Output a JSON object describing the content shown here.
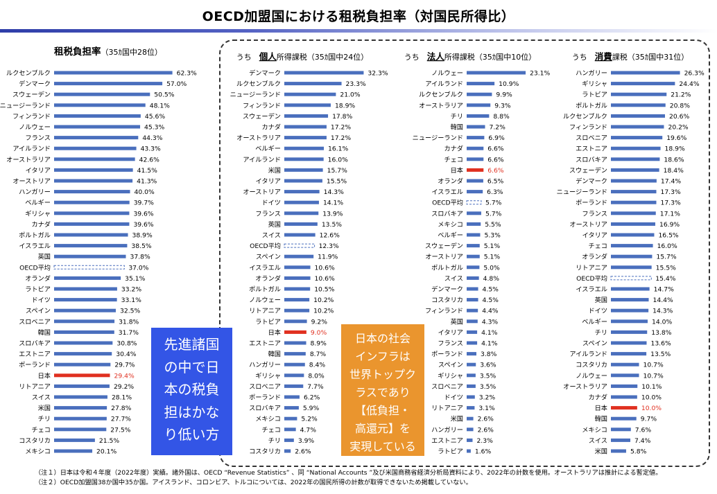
{
  "page": {
    "title": "OECD加盟国における租税負担率（対国民所得比）",
    "callout_left": "先進諸国\nの中で日\n本の税負\n担はかな\nり低い方",
    "callout_right": "日本の社会\nインフラは\n世界トップク\nラスであり\n【低負担・\n高還元】を\n実現している",
    "note1": "（注１）日本は令和４年度（2022年度）実績。諸外国は、OECD “Revenue Statistics” 、同 “National Accounts ”及び米国商務省経済分析局資料により、2022年の計数を使用。オーストラリアは推計による暫定値。",
    "note2": "（注２）OECD加盟国38か国中35か国。アイスランド、コロンビア、トルコについては、2022年の国民所得の計数が取得できないため掲載していない。"
  },
  "colors": {
    "bar": "#4a6fbd",
    "japan": "#e03020",
    "japan_label": "#e03020",
    "oecd_dash": "#4a6fbd"
  },
  "chart_data": [
    {
      "type": "bar",
      "orientation": "horizontal",
      "title_main": "租税負担率",
      "title_suffix": "（35ｶ国中28位）",
      "xlim": [
        0,
        65
      ],
      "highlight": "日本",
      "average": "OECD平均",
      "categories": [
        "ルクセンブルク",
        "デンマーク",
        "スウェーデン",
        "ニュージーランド",
        "フィンランド",
        "ノルウェー",
        "フランス",
        "アイルランド",
        "オーストラリア",
        "イタリア",
        "オーストリア",
        "ハンガリー",
        "ベルギー",
        "ギリシャ",
        "カナダ",
        "ポルトガル",
        "イスラエル",
        "英国",
        "OECD平均",
        "オランダ",
        "ラトビア",
        "ドイツ",
        "スペイン",
        "スロベニア",
        "韓国",
        "スロバキア",
        "エストニア",
        "ポーランド",
        "日本",
        "リトアニア",
        "スイス",
        "米国",
        "チリ",
        "チェコ",
        "コスタリカ",
        "メキシコ"
      ],
      "values": [
        62.3,
        57.0,
        50.5,
        48.1,
        45.6,
        45.3,
        44.3,
        43.3,
        42.6,
        41.5,
        41.3,
        40.0,
        39.7,
        39.6,
        39.6,
        38.9,
        38.5,
        37.8,
        37.0,
        35.1,
        33.2,
        33.1,
        32.5,
        31.8,
        31.7,
        30.8,
        30.4,
        29.7,
        29.4,
        29.2,
        28.1,
        27.8,
        27.7,
        27.5,
        21.5,
        20.1
      ],
      "labels": [
        "62.3%",
        "57.0%",
        "50.5%",
        "48.1%",
        "45.6%",
        "45.3%",
        "44.3%",
        "43.3%",
        "42.6%",
        "41.5%",
        "41.3%",
        "40.0%",
        "39.7%",
        "39.6%",
        "39.6%",
        "38.9%",
        "38.5%",
        "37.8%",
        "37.0%",
        "35.1%",
        "33.2%",
        "33.1%",
        "32.5%",
        "31.8%",
        "31.7%",
        "30.8%",
        "30.4%",
        "29.7%",
        "29.4%",
        "29.2%",
        "28.1%",
        "27.8%",
        "27.7%",
        "27.5%",
        "21.5%",
        "20.1%"
      ]
    },
    {
      "type": "bar",
      "orientation": "horizontal",
      "title_prefix": "うち",
      "title_main": "個人",
      "title_suffix": "所得課税（35ｶ国中24位）",
      "xlim": [
        0,
        35
      ],
      "highlight": "日本",
      "average": "OECD平均",
      "categories": [
        "デンマーク",
        "ルクセンブルク",
        "ニュージーランド",
        "フィンランド",
        "スウェーデン",
        "カナダ",
        "オーストラリア",
        "ベルギー",
        "アイルランド",
        "米国",
        "イタリア",
        "オーストリア",
        "ドイツ",
        "フランス",
        "英国",
        "スイス",
        "OECD平均",
        "スペイン",
        "イスラエル",
        "オランダ",
        "ポルトガル",
        "ノルウェー",
        "リトアニア",
        "ラトビア",
        "日本",
        "エストニア",
        "韓国",
        "ハンガリー",
        "ギリシャ",
        "スロベニア",
        "ポーランド",
        "スロバキア",
        "メキシコ",
        "チェコ",
        "チリ",
        "コスタリカ"
      ],
      "values": [
        32.3,
        23.3,
        21.0,
        18.9,
        17.8,
        17.2,
        17.2,
        16.1,
        16.0,
        15.7,
        15.5,
        14.3,
        14.1,
        13.9,
        13.5,
        12.6,
        12.3,
        11.9,
        10.6,
        10.6,
        10.5,
        10.2,
        10.2,
        9.2,
        9.0,
        8.9,
        8.7,
        8.4,
        8.0,
        7.7,
        6.2,
        5.9,
        5.2,
        4.7,
        3.9,
        2.6
      ],
      "labels": [
        "32.3%",
        "23.3%",
        "21.0%",
        "18.9%",
        "17.8%",
        "17.2%",
        "17.2%",
        "16.1%",
        "16.0%",
        "15.7%",
        "15.5%",
        "14.3%",
        "14.1%",
        "13.9%",
        "13.5%",
        "12.6%",
        "12.3%",
        "11.9%",
        "10.6%",
        "10.6%",
        "10.5%",
        "10.2%",
        "10.2%",
        "9.2%",
        "9.0%",
        "8.9%",
        "8.7%",
        "8.4%",
        "8.0%",
        "7.7%",
        "6.2%",
        "5.9%",
        "5.2%",
        "4.7%",
        "3.9%",
        "2.6%"
      ]
    },
    {
      "type": "bar",
      "orientation": "horizontal",
      "title_prefix": "うち",
      "title_main": "法人",
      "title_suffix": "所得課税（35ｶ国中10位）",
      "xlim": [
        0,
        25
      ],
      "highlight": "日本",
      "average": "OECD平均",
      "categories": [
        "ノルウェー",
        "アイルランド",
        "ルクセンブルク",
        "オーストラリア",
        "チリ",
        "韓国",
        "ニュージーランド",
        "カナダ",
        "チェコ",
        "日本",
        "オランダ",
        "イスラエル",
        "OECD平均",
        "スロバキア",
        "メキシコ",
        "ベルギー",
        "スウェーデン",
        "オーストリア",
        "ポルトガル",
        "スイス",
        "デンマーク",
        "コスタリカ",
        "フィンランド",
        "英国",
        "イタリア",
        "フランス",
        "ポーランド",
        "スペイン",
        "ギリシャ",
        "スロベニア",
        "ドイツ",
        "リトアニア",
        "米国",
        "ハンガリー",
        "エストニア",
        "ラトビア"
      ],
      "values": [
        23.1,
        10.9,
        9.9,
        9.3,
        8.8,
        7.2,
        6.9,
        6.6,
        6.6,
        6.6,
        6.5,
        6.3,
        5.7,
        5.7,
        5.5,
        5.3,
        5.1,
        5.1,
        5.0,
        4.8,
        4.5,
        4.5,
        4.4,
        4.3,
        4.1,
        4.1,
        3.8,
        3.6,
        3.5,
        3.5,
        3.2,
        3.1,
        2.6,
        2.6,
        2.3,
        1.6
      ],
      "labels": [
        "23.1%",
        "10.9%",
        "9.9%",
        "9.3%",
        "8.8%",
        "7.2%",
        "6.9%",
        "6.6%",
        "6.6%",
        "6.6%",
        "6.5%",
        "6.3%",
        "5.7%",
        "5.7%",
        "5.5%",
        "5.3%",
        "5.1%",
        "5.1%",
        "5.0%",
        "4.8%",
        "4.5%",
        "4.5%",
        "4.4%",
        "4.3%",
        "4.1%",
        "4.1%",
        "3.8%",
        "3.6%",
        "3.5%",
        "3.5%",
        "3.2%",
        "3.1%",
        "2.6%",
        "2.6%",
        "2.3%",
        "1.6%"
      ]
    },
    {
      "type": "bar",
      "orientation": "horizontal",
      "title_prefix": "うち",
      "title_main": "消費",
      "title_suffix": "課税（35ｶ国中31位）",
      "xlim": [
        0,
        28
      ],
      "highlight": "日本",
      "average": "OECD平均",
      "categories": [
        "ハンガリー",
        "ギリシャ",
        "ラトビア",
        "ポルトガル",
        "ルクセンブルク",
        "フィンランド",
        "スロベニア",
        "エストニア",
        "スロバキア",
        "スウェーデン",
        "デンマーク",
        "ニュージーランド",
        "ポーランド",
        "フランス",
        "オーストリア",
        "イタリア",
        "チェコ",
        "オランダ",
        "リトアニア",
        "OECD平均",
        "イスラエル",
        "英国",
        "ドイツ",
        "ベルギー",
        "チリ",
        "スペイン",
        "アイルランド",
        "コスタリカ",
        "ノルウェー",
        "オーストラリア",
        "カナダ",
        "日本",
        "韓国",
        "メキシコ",
        "スイス",
        "米国"
      ],
      "values": [
        26.3,
        24.4,
        21.2,
        20.8,
        20.6,
        20.2,
        19.6,
        18.9,
        18.6,
        18.4,
        17.4,
        17.3,
        17.3,
        17.1,
        16.9,
        16.5,
        16.0,
        15.7,
        15.5,
        15.4,
        14.7,
        14.4,
        14.3,
        14.0,
        13.8,
        13.6,
        13.5,
        10.7,
        10.7,
        10.1,
        10.0,
        10.0,
        9.7,
        7.6,
        7.4,
        5.8
      ],
      "labels": [
        "26.3%",
        "24.4%",
        "21.2%",
        "20.8%",
        "20.6%",
        "20.2%",
        "19.6%",
        "18.9%",
        "18.6%",
        "18.4%",
        "17.4%",
        "17.3%",
        "17.3%",
        "17.1%",
        "16.9%",
        "16.5%",
        "16.0%",
        "15.7%",
        "15.5%",
        "15.4%",
        "14.7%",
        "14.4%",
        "14.3%",
        "14.0%",
        "13.8%",
        "13.6%",
        "13.5%",
        "10.7%",
        "10.7%",
        "10.1%",
        "10.0%",
        "10.0%",
        "9.7%",
        "7.6%",
        "7.4%",
        "5.8%"
      ]
    }
  ]
}
